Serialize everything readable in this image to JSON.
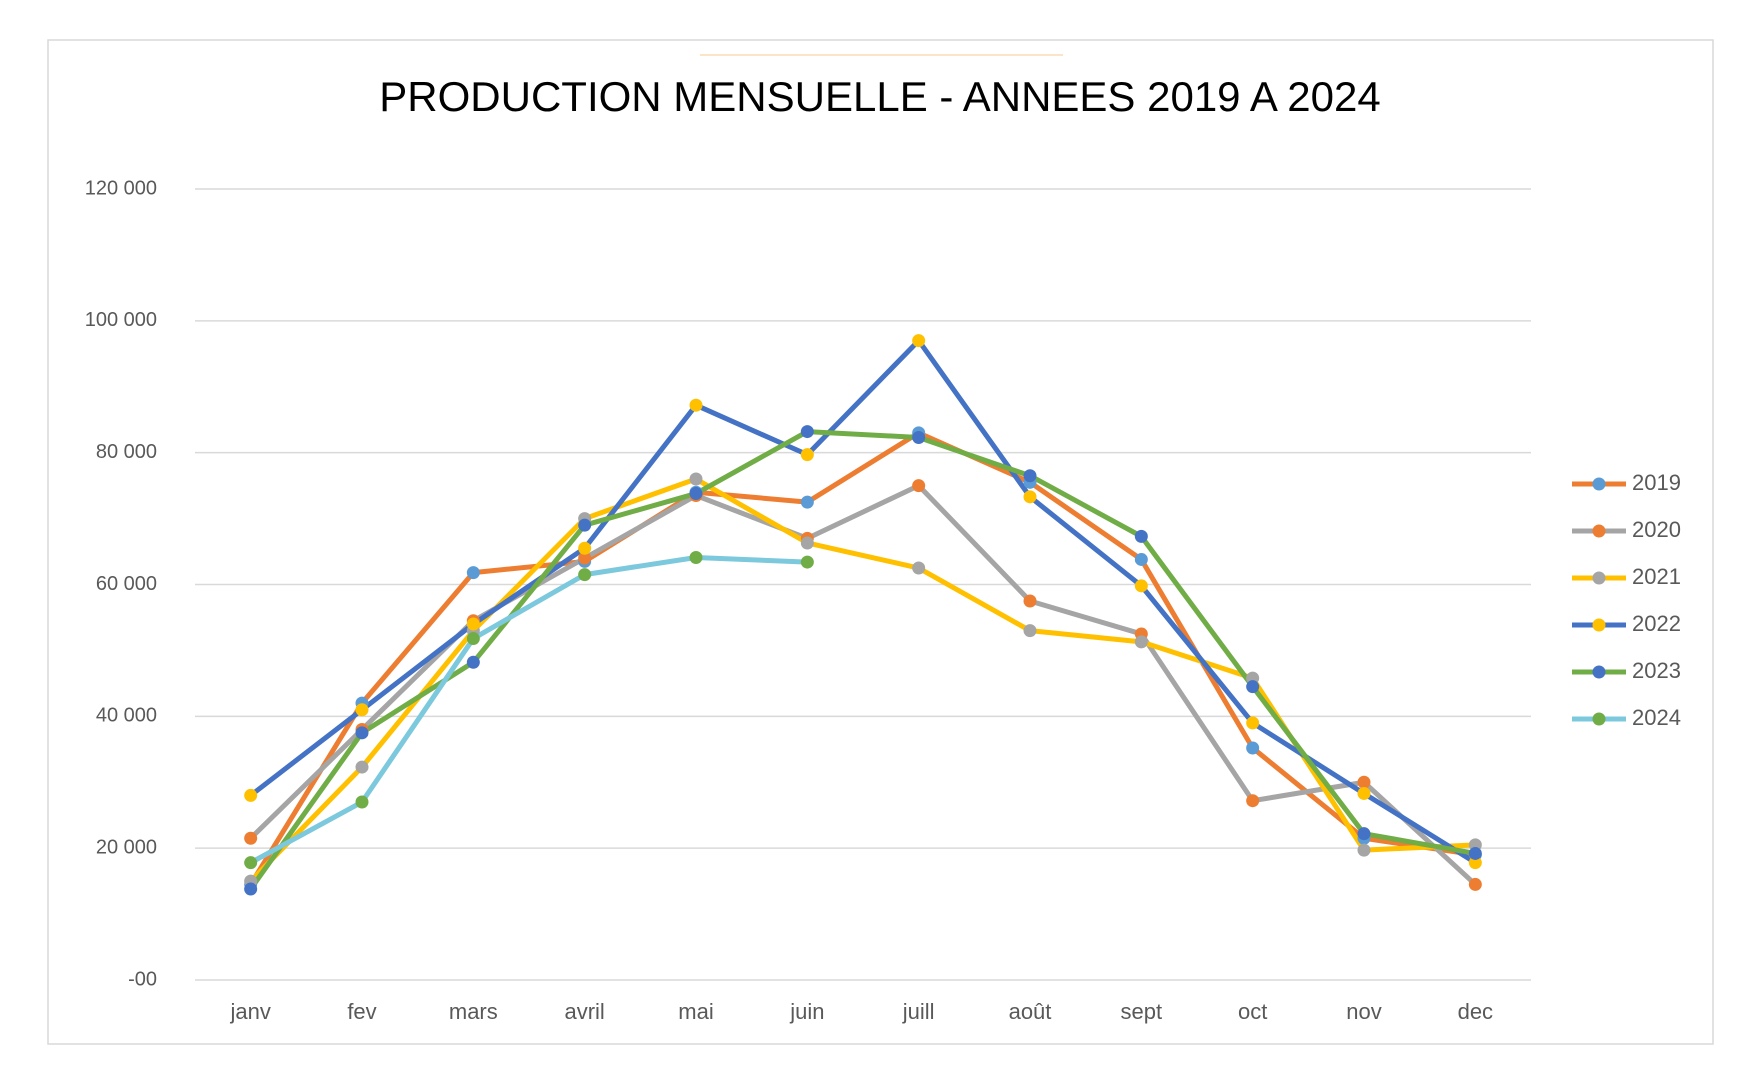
{
  "chart_data": {
    "type": "line",
    "title": "PRODUCTION MENSUELLE - ANNEES 2019 A 2024",
    "categories": [
      "janv",
      "fev",
      "mars",
      "avril",
      "mai",
      "juin",
      "juill",
      "août",
      "sept",
      "oct",
      "nov",
      "dec"
    ],
    "series": [
      {
        "name": "2019",
        "color": "#ED7D31",
        "marker_color": "#5B9BD5",
        "values": [
          14500,
          42000,
          61800,
          63500,
          74000,
          72500,
          83000,
          75500,
          63800,
          35200,
          21500,
          19000
        ]
      },
      {
        "name": "2020",
        "color": "#A5A5A5",
        "marker_color": "#ED7D31",
        "values": [
          21500,
          38000,
          54500,
          64000,
          73500,
          67000,
          75000,
          57500,
          52500,
          27200,
          30000,
          14500
        ]
      },
      {
        "name": "2021",
        "color": "#FFC000",
        "marker_color": "#A5A5A5",
        "values": [
          15000,
          32300,
          53000,
          70000,
          76000,
          66300,
          62500,
          53000,
          51300,
          45800,
          19700,
          20500
        ]
      },
      {
        "name": "2022",
        "color": "#4472C4",
        "marker_color": "#FFC000",
        "values": [
          28000,
          41000,
          54000,
          65500,
          87200,
          79700,
          97000,
          73300,
          59800,
          39000,
          28300,
          17800
        ]
      },
      {
        "name": "2023",
        "color": "#70AD47",
        "marker_color": "#4472C4",
        "values": [
          13800,
          37500,
          48200,
          69000,
          73800,
          83200,
          82300,
          76500,
          67300,
          44500,
          22200,
          19200
        ]
      },
      {
        "name": "2024",
        "color": "#7CC8DC",
        "marker_color": "#70AD47",
        "values": [
          17800,
          27000,
          51800,
          61500,
          64100,
          63400,
          null,
          null,
          null,
          null,
          null,
          null
        ]
      }
    ],
    "ylim": [
      0,
      120000
    ],
    "yticks": [
      {
        "value": 0,
        "label": "-00"
      },
      {
        "value": 20000,
        "label": "20 000"
      },
      {
        "value": 40000,
        "label": "40 000"
      },
      {
        "value": 60000,
        "label": "60 000"
      },
      {
        "value": 80000,
        "label": "80 000"
      },
      {
        "value": 100000,
        "label": "100 000"
      },
      {
        "value": 120000,
        "label": "120 000"
      }
    ],
    "grid": true,
    "legend": "right"
  }
}
